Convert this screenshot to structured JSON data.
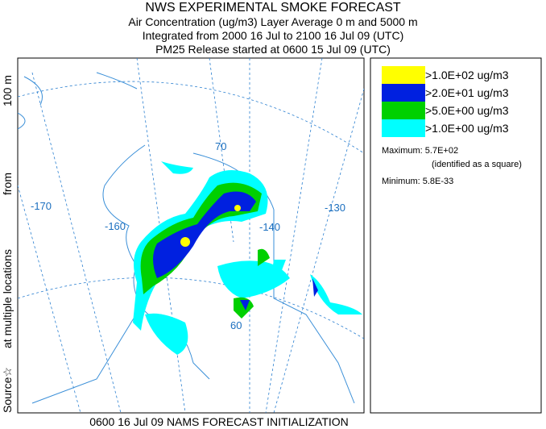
{
  "header": {
    "title": "NWS EXPERIMENTAL SMOKE FORECAST",
    "lines": [
      "Air Concentration (ug/m3) Layer Average    0 m and  5000 m",
      "Integrated from 2000 16 Jul to 2100 16 Jul 09 (UTC)",
      "PM25 Release started at 0600 15 Jul 09 (UTC)"
    ]
  },
  "side_label": [
    "Source☆",
    "at multiple locations",
    "from",
    "100 m"
  ],
  "map": {
    "labels": [
      "70",
      "-170",
      "-160",
      "-140",
      "-130",
      "60"
    ]
  },
  "legend": {
    "items": [
      {
        "label": ">1.0E+02 ug/m3",
        "color": "#ffff00"
      },
      {
        "label": ">2.0E+01 ug/m3",
        "color": "#0020e0"
      },
      {
        "label": ">5.0E+00 ug/m3",
        "color": "#00d000"
      },
      {
        "label": ">1.0E+00 ug/m3",
        "color": "#00ffff"
      }
    ],
    "maximum": "Maximum: 5.7E+02",
    "maximum_note": "(identified as a square)",
    "minimum": "Minimum: 5.8E-33"
  },
  "footer": "0600 16 Jul 09 NAMS FORECAST INITIALIZATION"
}
